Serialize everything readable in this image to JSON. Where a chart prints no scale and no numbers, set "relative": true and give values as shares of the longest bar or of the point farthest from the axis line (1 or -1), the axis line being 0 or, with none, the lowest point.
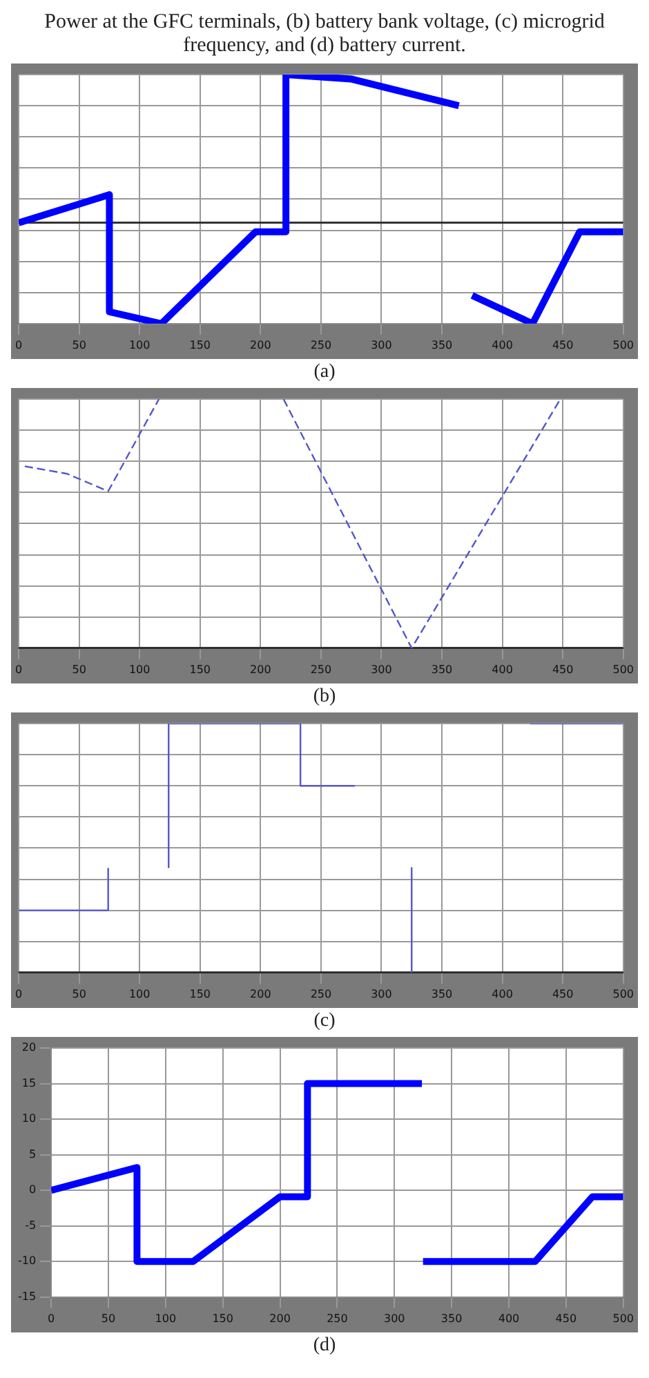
{
  "chart_data": [
    {
      "type": "line",
      "title": "Power at the GFC terminals, (b) battery bank voltage, (c) microgrid frequency, and (d) battery current.",
      "xlabel": "(a)",
      "relative": true,
      "tick_labels": "x",
      "grid": true,
      "legend": false,
      "marker": "none",
      "xlim": [
        0,
        500
      ],
      "xticks": [
        0,
        50,
        100,
        150,
        200,
        250,
        300,
        350,
        400,
        450,
        500
      ],
      "series": [
        {
          "color": "#0000ff",
          "x": [
            0,
            75,
            75,
            118,
            196,
            221,
            221,
            275,
            364,
            null,
            375,
            425,
            464,
            500
          ],
          "values": [
            0,
            0.19,
            -0.6,
            -0.68,
            -0.06,
            -0.06,
            1,
            0.97,
            0.79,
            null,
            -0.49,
            -0.68,
            -0.06,
            -0.06
          ]
        }
      ]
    },
    {
      "type": "line",
      "xlabel": "(b)",
      "relative": true,
      "tick_labels": "x",
      "grid": true,
      "legend": false,
      "marker": "none",
      "line_style": "dashed",
      "xlim": [
        0,
        500
      ],
      "xticks": [
        0,
        50,
        100,
        150,
        200,
        250,
        300,
        350,
        400,
        450,
        500
      ],
      "series": [
        {
          "color": "#5555cc",
          "x": [
            5,
            40,
            74,
            116,
            null,
            219,
            325,
            448
          ],
          "values": [
            0.73,
            0.7,
            0.63,
            1,
            null,
            1,
            0,
            1
          ]
        }
      ]
    },
    {
      "type": "line",
      "xlabel": "(c)",
      "relative": true,
      "tick_labels": "x",
      "grid": true,
      "legend": false,
      "marker": "none",
      "xlim": [
        0,
        500
      ],
      "xticks": [
        0,
        50,
        100,
        150,
        200,
        250,
        300,
        350,
        400,
        450,
        500
      ],
      "series": [
        {
          "color": "#5555cc",
          "x": [
            0,
            74,
            74,
            null,
            124,
            124,
            233,
            233,
            278,
            null,
            325,
            325,
            null,
            423,
            500
          ],
          "values": [
            0.25,
            0.25,
            0.42,
            null,
            0.42,
            1,
            1,
            0.75,
            0.75,
            null,
            0.42,
            0,
            null,
            1,
            1
          ]
        }
      ]
    },
    {
      "type": "line",
      "xlabel": "(d)",
      "grid": true,
      "legend": false,
      "marker": "none",
      "xlim": [
        0,
        500
      ],
      "xticks": [
        0,
        50,
        100,
        150,
        200,
        250,
        300,
        350,
        400,
        450,
        500
      ],
      "ylim": [
        -15,
        20
      ],
      "yticks": [
        -15,
        -10,
        -5,
        0,
        5,
        10,
        15,
        20
      ],
      "series": [
        {
          "color": "#0000ff",
          "x": [
            0,
            75,
            75,
            124,
            200,
            224,
            224,
            324,
            null,
            325,
            423,
            473,
            500
          ],
          "values": [
            0,
            3.2,
            -10,
            -10,
            -0.9,
            -0.9,
            15,
            15,
            null,
            -10,
            -10,
            -0.9,
            -0.9
          ]
        }
      ]
    }
  ]
}
